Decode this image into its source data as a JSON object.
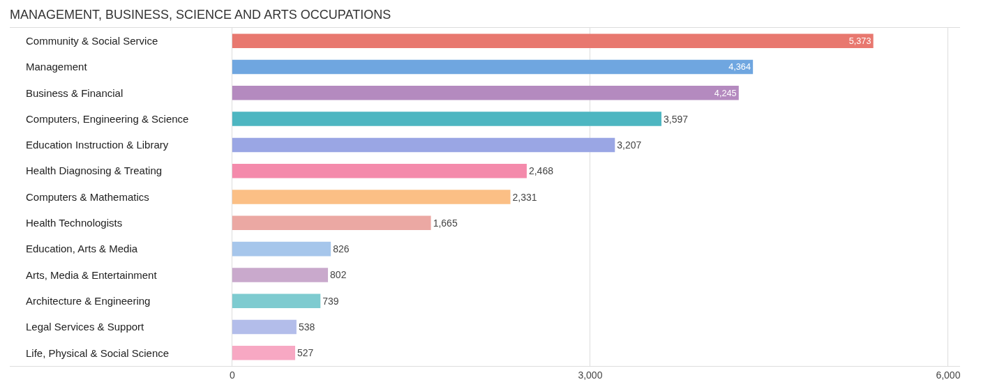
{
  "chart_data": {
    "type": "bar",
    "orientation": "horizontal",
    "title": "MANAGEMENT, BUSINESS, SCIENCE AND ARTS OCCUPATIONS",
    "categories": [
      "Community & Social Service",
      "Management",
      "Business & Financial",
      "Computers, Engineering & Science",
      "Education Instruction & Library",
      "Health Diagnosing & Treating",
      "Computers & Mathematics",
      "Health Technologists",
      "Education, Arts & Media",
      "Arts, Media & Entertainment",
      "Architecture & Engineering",
      "Legal Services & Support",
      "Life, Physical & Social Science"
    ],
    "values": [
      5373,
      4364,
      4245,
      3597,
      3207,
      2468,
      2331,
      1665,
      826,
      802,
      739,
      538,
      527
    ],
    "colors": [
      "#e8786f",
      "#6fa6e0",
      "#b48abf",
      "#4db6c1",
      "#9aa6e4",
      "#f48aab",
      "#fbbf85",
      "#eba8a3",
      "#a6c6eb",
      "#c9a9cc",
      "#7ecbd0",
      "#b3bdea",
      "#f7a8c3"
    ],
    "xlim": [
      -1865,
      6100
    ],
    "xticks": [
      0,
      {
        "value": 3000,
        "label": "3,000"
      },
      {
        "value": 6000,
        "label": "6,000"
      }
    ],
    "value_labels": [
      "5,373",
      "4,364",
      "4,245",
      "3,597",
      "3,207",
      "2,468",
      "2,331",
      "1,665",
      "826",
      "802",
      "739",
      "538",
      "527"
    ],
    "grid": "x"
  }
}
